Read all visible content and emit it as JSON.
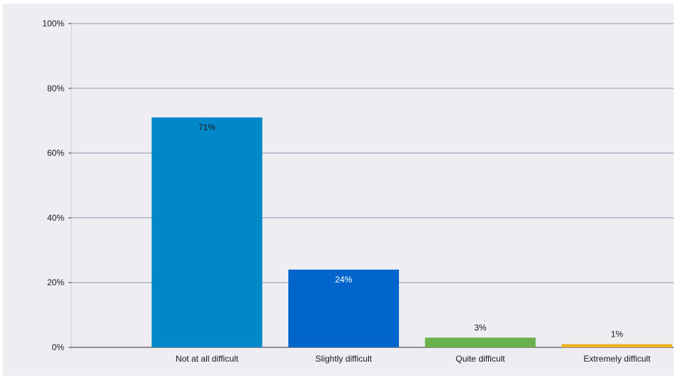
{
  "chart_data": {
    "type": "bar",
    "categories": [
      "Not at all difficult",
      "Slightly difficult",
      "Quite difficult",
      "Extremely difficult"
    ],
    "values": [
      71,
      24,
      3,
      1
    ],
    "value_labels": [
      "71%",
      "24%",
      "3%",
      "1%"
    ],
    "colors": [
      "#0088c9",
      "#0066cc",
      "#6ab04c",
      "#f0b323"
    ],
    "label_colors": [
      "#1a1a1a",
      "#ffffff",
      "#1a1a1a",
      "#1a1a1a"
    ],
    "yticks": [
      0,
      20,
      40,
      60,
      80,
      100
    ],
    "ytick_labels": [
      "0%",
      "20%",
      "40%",
      "60%",
      "80%",
      "100%"
    ],
    "ylim": [
      0,
      100
    ],
    "grid": true,
    "legend": "none",
    "title": "",
    "xlabel": "",
    "ylabel": ""
  }
}
